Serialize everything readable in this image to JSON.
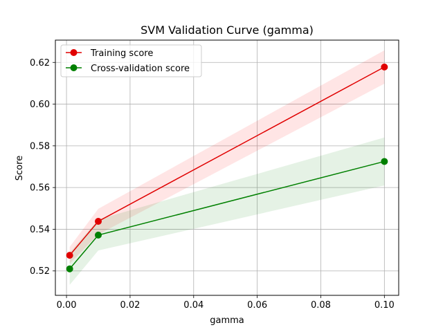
{
  "chart_data": {
    "type": "line",
    "title": "SVM Validation Curve (gamma)",
    "xlabel": "gamma",
    "ylabel": "Score",
    "x": [
      0.001,
      0.01,
      0.1
    ],
    "xlim": [
      -0.0035,
      0.1045
    ],
    "ylim": [
      0.5083,
      0.6307
    ],
    "xticks": [
      0.0,
      0.02,
      0.04,
      0.06,
      0.08,
      0.1
    ],
    "xtick_labels": [
      "0.00",
      "0.02",
      "0.04",
      "0.06",
      "0.08",
      "0.10"
    ],
    "yticks": [
      0.52,
      0.54,
      0.56,
      0.58,
      0.6,
      0.62
    ],
    "ytick_labels": [
      "0.52",
      "0.54",
      "0.56",
      "0.58",
      "0.60",
      "0.62"
    ],
    "grid": true,
    "legend_position": "top-left",
    "series": [
      {
        "name": "Training score",
        "color": "#e00000",
        "band_color": "#ff0000",
        "marker": "circle",
        "values": [
          0.5275,
          0.5438,
          0.6178
        ],
        "lower": [
          0.5235,
          0.5375,
          0.6098
        ],
        "upper": [
          0.5315,
          0.5498,
          0.6258
        ]
      },
      {
        "name": "Cross-validation score",
        "color": "#008000",
        "band_color": "#008000",
        "marker": "circle",
        "values": [
          0.521,
          0.5372,
          0.5725
        ],
        "lower": [
          0.5133,
          0.5298,
          0.561
        ],
        "upper": [
          0.5287,
          0.5447,
          0.584
        ]
      }
    ]
  }
}
